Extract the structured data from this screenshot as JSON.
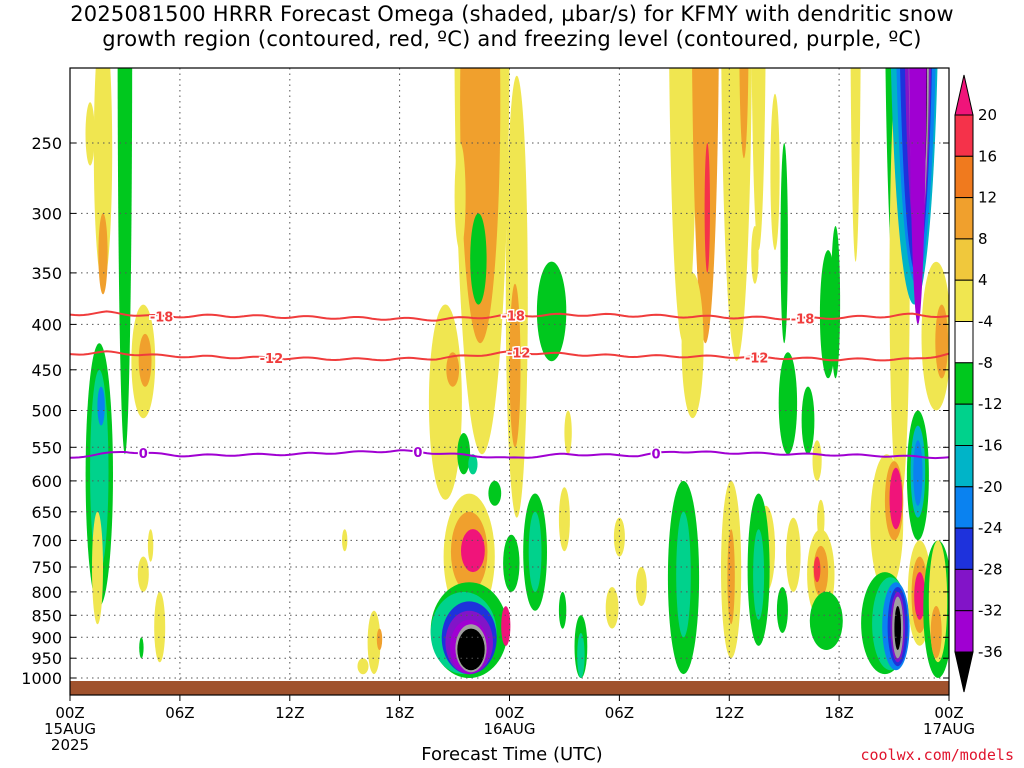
{
  "title_line1": "2025081500 HRRR Forecast Omega (shaded, µbar/s) for KFMY with dendritic snow",
  "title_line2": "growth region (contoured, red, ºC) and freezing level (contoured, purple, ºC)",
  "xlabel": "Forecast Time (UTC)",
  "credit": "coolwx.com/models",
  "chart_data": {
    "type": "heatmap",
    "title": "2025081500 HRRR Forecast Omega (shaded, µbar/s) for KFMY with dendritic snow growth region (contoured, red, ºC) and freezing level (contoured, purple, ºC)",
    "xlabel": "Forecast Time (UTC)",
    "ylabel": "",
    "x_ticks": [
      "00Z",
      "06Z",
      "12Z",
      "18Z",
      "00Z",
      "06Z",
      "12Z",
      "18Z",
      "00Z"
    ],
    "x_hours": [
      0,
      6,
      12,
      18,
      24,
      30,
      36,
      42,
      48
    ],
    "date_labels": [
      {
        "hour": 0,
        "lines": [
          "15AUG",
          "2025"
        ]
      },
      {
        "hour": 24,
        "lines": [
          "16AUG"
        ]
      },
      {
        "hour": 48,
        "lines": [
          "17AUG"
        ]
      }
    ],
    "y_ticks": [
      250,
      300,
      350,
      400,
      450,
      500,
      550,
      600,
      650,
      700,
      750,
      800,
      850,
      900,
      950,
      1000
    ],
    "y_range_hpa": [
      200,
      1030
    ],
    "grid": true,
    "colorbar": {
      "labels": [
        "20",
        "16",
        "12",
        "8",
        "4",
        "-4",
        "-8",
        "-12",
        "-16",
        "-20",
        "-24",
        "-28",
        "-32",
        "-36"
      ],
      "colors": [
        "#f0147a",
        "#f5324a",
        "#f07a1e",
        "#f0a02d",
        "#f0c83c",
        "#f0e650",
        "#ffffff",
        "#00c81e",
        "#00d28c",
        "#00b4c8",
        "#0a82f0",
        "#1e32dc",
        "#8214c8",
        "#a000d2",
        "#a0a0a0",
        "#000000"
      ]
    },
    "contours": [
      {
        "label": "-18",
        "color": "#f03c3c",
        "points": [
          [
            0,
            390
          ],
          [
            2,
            388
          ],
          [
            5,
            392
          ],
          [
            8,
            391
          ],
          [
            14,
            393
          ],
          [
            20,
            395
          ],
          [
            24,
            391
          ],
          [
            28,
            390
          ],
          [
            34,
            392
          ],
          [
            40,
            394
          ],
          [
            44,
            392
          ],
          [
            46,
            390
          ],
          [
            48,
            392
          ]
        ],
        "label_hours": [
          5,
          24.2,
          40
        ]
      },
      {
        "label": "-12",
        "color": "#f03c3c",
        "points": [
          [
            0,
            432
          ],
          [
            2,
            430
          ],
          [
            5,
            434
          ],
          [
            10,
            436
          ],
          [
            16,
            438
          ],
          [
            20,
            437
          ],
          [
            24,
            430
          ],
          [
            30,
            434
          ],
          [
            36,
            435
          ],
          [
            42,
            438
          ],
          [
            46,
            438
          ],
          [
            48,
            432
          ]
        ],
        "label_hours": [
          11,
          24.5,
          37.5
        ]
      },
      {
        "label": "0",
        "color": "#a000d2",
        "points": [
          [
            0,
            565
          ],
          [
            3,
            556
          ],
          [
            6,
            562
          ],
          [
            12,
            560
          ],
          [
            18,
            555
          ],
          [
            22,
            562
          ],
          [
            24,
            566
          ],
          [
            27,
            560
          ],
          [
            31,
            562
          ],
          [
            33,
            556
          ],
          [
            36,
            558
          ],
          [
            40,
            560
          ],
          [
            44,
            562
          ],
          [
            48,
            565
          ]
        ],
        "label_hours": [
          4,
          19,
          32
        ]
      }
    ],
    "omega_features": [
      {
        "hour": 3.0,
        "p_hpa": 430,
        "value": 6
      },
      {
        "hour": 4.2,
        "p_hpa": 440,
        "value": 8
      },
      {
        "hour": 1.7,
        "p_hpa": 520,
        "value": -10
      },
      {
        "hour": 1.7,
        "p_hpa": 490,
        "value": -12
      },
      {
        "hour": 1.8,
        "p_hpa": 480,
        "value": -16
      },
      {
        "hour": 22.5,
        "p_hpa": 290,
        "value": 8
      },
      {
        "hour": 21.0,
        "p_hpa": 450,
        "value": 6
      },
      {
        "hour": 21.8,
        "p_hpa": 870,
        "value": -20
      },
      {
        "hour": 21.8,
        "p_hpa": 870,
        "value": -36
      },
      {
        "hour": 22.0,
        "p_hpa": 700,
        "value": 20
      },
      {
        "hour": 25.5,
        "p_hpa": 370,
        "value": -8
      },
      {
        "hour": 34.5,
        "p_hpa": 260,
        "value": 12
      },
      {
        "hour": 34.7,
        "p_hpa": 300,
        "value": 20
      },
      {
        "hour": 46.3,
        "p_hpa": 270,
        "value": -36
      },
      {
        "hour": 46.0,
        "p_hpa": 310,
        "value": -28
      },
      {
        "hour": 45.0,
        "p_hpa": 600,
        "value": 20
      },
      {
        "hour": 46.3,
        "p_hpa": 600,
        "value": -16
      },
      {
        "hour": 45.2,
        "p_hpa": 860,
        "value": -36
      },
      {
        "hour": 46.4,
        "p_hpa": 800,
        "value": 20
      },
      {
        "hour": 41.0,
        "p_hpa": 750,
        "value": 12
      },
      {
        "hour": 36.0,
        "p_hpa": 760,
        "value": 8
      },
      {
        "hour": 33.5,
        "p_hpa": 760,
        "value": -12
      }
    ]
  }
}
